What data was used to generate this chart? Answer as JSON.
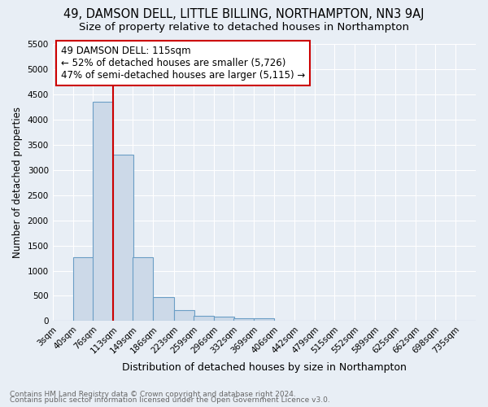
{
  "title": "49, DAMSON DELL, LITTLE BILLING, NORTHAMPTON, NN3 9AJ",
  "subtitle": "Size of property relative to detached houses in Northampton",
  "xlabel": "Distribution of detached houses by size in Northampton",
  "ylabel": "Number of detached properties",
  "footnote1": "Contains HM Land Registry data © Crown copyright and database right 2024.",
  "footnote2": "Contains public sector information licensed under the Open Government Licence v3.0.",
  "annotation_title": "49 DAMSON DELL: 115sqm",
  "annotation_line2": "← 52% of detached houses are smaller (5,726)",
  "annotation_line3": "47% of semi-detached houses are larger (5,115) →",
  "bar_color": "#ccd9e8",
  "bar_edge_color": "#6a9ec5",
  "red_line_color": "#cc0000",
  "categories": [
    "3sqm",
    "40sqm",
    "76sqm",
    "113sqm",
    "149sqm",
    "186sqm",
    "223sqm",
    "259sqm",
    "296sqm",
    "332sqm",
    "369sqm",
    "406sqm",
    "442sqm",
    "479sqm",
    "515sqm",
    "552sqm",
    "589sqm",
    "625sqm",
    "662sqm",
    "698sqm",
    "735sqm"
  ],
  "bin_left_edges": [
    3,
    40,
    76,
    113,
    149,
    186,
    223,
    259,
    296,
    332,
    369,
    406,
    442,
    479,
    515,
    552,
    589,
    625,
    662,
    698,
    735
  ],
  "bin_width": 37,
  "values": [
    0,
    1270,
    4350,
    3300,
    1270,
    480,
    215,
    100,
    80,
    55,
    55,
    0,
    0,
    0,
    0,
    0,
    0,
    0,
    0,
    0,
    0
  ],
  "red_line_x": 113,
  "ylim": [
    0,
    5500
  ],
  "yticks": [
    0,
    500,
    1000,
    1500,
    2000,
    2500,
    3000,
    3500,
    4000,
    4500,
    5000,
    5500
  ],
  "bg_color": "#e8eef5",
  "grid_color": "#ffffff",
  "title_fontsize": 10.5,
  "subtitle_fontsize": 9.5,
  "ylabel_fontsize": 8.5,
  "xlabel_fontsize": 9,
  "tick_fontsize": 7.5,
  "footnote_fontsize": 6.5,
  "footnote_color": "#666666",
  "ann_fontsize": 8.5,
  "ann_box_facecolor": "#ffffff",
  "ann_box_edgecolor": "#cc0000"
}
